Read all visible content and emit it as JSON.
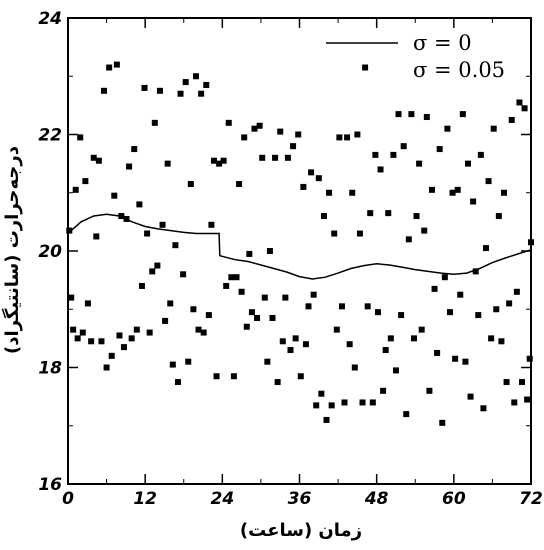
{
  "chart_data": {
    "type": "scatter",
    "xlabel": "زمان (ساعت)",
    "ylabel": "درجه‌حرارت (سانتیگراد)",
    "xlim": [
      0,
      72
    ],
    "ylim": [
      16,
      24
    ],
    "xticks": [
      "0",
      "12",
      "24",
      "36",
      "48",
      "60",
      "72"
    ],
    "yticks": [
      "16",
      "18",
      "20",
      "22",
      "24"
    ],
    "legend_position": "top-right",
    "series": [
      {
        "name": "σ = 0",
        "kind": "line",
        "color": "#000000",
        "points": [
          [
            0,
            20.3
          ],
          [
            2,
            20.5
          ],
          [
            4,
            20.6
          ],
          [
            6,
            20.63
          ],
          [
            8,
            20.6
          ],
          [
            10,
            20.5
          ],
          [
            12,
            20.42
          ],
          [
            14,
            20.38
          ],
          [
            16,
            20.35
          ],
          [
            18,
            20.32
          ],
          [
            20,
            20.3
          ],
          [
            22,
            20.3
          ],
          [
            23.5,
            20.3
          ],
          [
            23.6,
            19.92
          ],
          [
            26,
            19.85
          ],
          [
            28,
            19.82
          ],
          [
            30,
            19.76
          ],
          [
            32,
            19.7
          ],
          [
            34,
            19.64
          ],
          [
            36,
            19.56
          ],
          [
            38,
            19.52
          ],
          [
            40,
            19.55
          ],
          [
            42,
            19.62
          ],
          [
            44,
            19.7
          ],
          [
            46,
            19.75
          ],
          [
            48,
            19.78
          ],
          [
            50,
            19.76
          ],
          [
            52,
            19.72
          ],
          [
            54,
            19.68
          ],
          [
            56,
            19.65
          ],
          [
            58,
            19.62
          ],
          [
            60,
            19.6
          ],
          [
            62,
            19.62
          ],
          [
            64,
            19.7
          ],
          [
            66,
            19.8
          ],
          [
            68,
            19.88
          ],
          [
            70,
            19.95
          ],
          [
            72,
            20.02
          ]
        ]
      },
      {
        "name": "σ = 0.05",
        "kind": "markers",
        "color": "#000000",
        "points": [
          [
            0.2,
            20.35
          ],
          [
            0.5,
            19.2
          ],
          [
            0.8,
            18.65
          ],
          [
            1.2,
            21.05
          ],
          [
            1.5,
            18.5
          ],
          [
            1.9,
            21.95
          ],
          [
            2.3,
            18.6
          ],
          [
            2.7,
            21.2
          ],
          [
            3.1,
            19.1
          ],
          [
            3.6,
            18.45
          ],
          [
            4.0,
            21.6
          ],
          [
            4.4,
            20.25
          ],
          [
            4.8,
            21.55
          ],
          [
            5.2,
            18.45
          ],
          [
            5.6,
            22.75
          ],
          [
            6.0,
            18.0
          ],
          [
            6.4,
            23.15
          ],
          [
            6.8,
            18.2
          ],
          [
            7.2,
            20.95
          ],
          [
            7.6,
            23.2
          ],
          [
            8.0,
            18.55
          ],
          [
            8.3,
            20.6
          ],
          [
            8.7,
            18.35
          ],
          [
            9.1,
            20.55
          ],
          [
            9.5,
            21.45
          ],
          [
            9.9,
            18.5
          ],
          [
            10.3,
            21.75
          ],
          [
            10.7,
            18.65
          ],
          [
            11.1,
            20.8
          ],
          [
            11.5,
            19.4
          ],
          [
            11.9,
            22.8
          ],
          [
            12.3,
            20.3
          ],
          [
            12.7,
            18.6
          ],
          [
            13.1,
            19.65
          ],
          [
            13.5,
            22.2
          ],
          [
            13.9,
            19.75
          ],
          [
            14.3,
            22.75
          ],
          [
            14.7,
            20.45
          ],
          [
            15.1,
            18.8
          ],
          [
            15.5,
            21.5
          ],
          [
            15.9,
            19.1
          ],
          [
            16.3,
            18.05
          ],
          [
            16.7,
            20.1
          ],
          [
            17.1,
            17.75
          ],
          [
            17.5,
            22.7
          ],
          [
            17.9,
            19.6
          ],
          [
            18.3,
            22.9
          ],
          [
            18.7,
            18.1
          ],
          [
            19.1,
            21.15
          ],
          [
            19.5,
            19.0
          ],
          [
            19.9,
            23.0
          ],
          [
            20.3,
            18.65
          ],
          [
            20.7,
            22.7
          ],
          [
            21.1,
            18.6
          ],
          [
            21.5,
            22.85
          ],
          [
            21.9,
            18.9
          ],
          [
            22.3,
            20.45
          ],
          [
            22.7,
            21.55
          ],
          [
            23.1,
            17.85
          ],
          [
            23.5,
            21.5
          ],
          [
            24.2,
            21.55
          ],
          [
            24.6,
            19.4
          ],
          [
            25.0,
            22.2
          ],
          [
            25.4,
            19.55
          ],
          [
            25.8,
            17.85
          ],
          [
            26.2,
            19.55
          ],
          [
            26.6,
            21.15
          ],
          [
            27.0,
            19.3
          ],
          [
            27.4,
            21.95
          ],
          [
            27.8,
            18.7
          ],
          [
            28.2,
            19.95
          ],
          [
            28.6,
            18.95
          ],
          [
            29.0,
            22.1
          ],
          [
            29.4,
            18.85
          ],
          [
            29.8,
            22.15
          ],
          [
            30.2,
            21.6
          ],
          [
            30.6,
            19.2
          ],
          [
            31.0,
            18.1
          ],
          [
            31.4,
            20.0
          ],
          [
            31.8,
            18.85
          ],
          [
            32.2,
            21.6
          ],
          [
            32.6,
            17.75
          ],
          [
            33.0,
            22.05
          ],
          [
            33.4,
            18.45
          ],
          [
            33.8,
            19.2
          ],
          [
            34.2,
            21.6
          ],
          [
            34.6,
            18.3
          ],
          [
            35.0,
            21.8
          ],
          [
            35.4,
            18.5
          ],
          [
            35.8,
            22.0
          ],
          [
            36.2,
            17.85
          ],
          [
            36.6,
            21.1
          ],
          [
            37.0,
            18.4
          ],
          [
            37.4,
            19.05
          ],
          [
            37.8,
            21.35
          ],
          [
            38.2,
            19.25
          ],
          [
            38.6,
            17.35
          ],
          [
            39.0,
            21.25
          ],
          [
            39.4,
            17.55
          ],
          [
            39.8,
            20.6
          ],
          [
            40.2,
            17.1
          ],
          [
            40.6,
            21.0
          ],
          [
            41.0,
            17.35
          ],
          [
            41.4,
            20.3
          ],
          [
            41.8,
            18.65
          ],
          [
            42.2,
            21.95
          ],
          [
            42.6,
            19.05
          ],
          [
            43.0,
            17.4
          ],
          [
            43.4,
            21.95
          ],
          [
            43.8,
            18.4
          ],
          [
            44.2,
            21.0
          ],
          [
            44.6,
            18.0
          ],
          [
            45.0,
            22.0
          ],
          [
            45.4,
            20.3
          ],
          [
            45.8,
            17.4
          ],
          [
            46.2,
            23.15
          ],
          [
            46.6,
            19.05
          ],
          [
            47.0,
            20.65
          ],
          [
            47.4,
            17.4
          ],
          [
            47.8,
            21.65
          ],
          [
            48.2,
            18.95
          ],
          [
            48.6,
            21.4
          ],
          [
            49.0,
            17.6
          ],
          [
            49.4,
            18.3
          ],
          [
            49.8,
            20.65
          ],
          [
            50.2,
            18.5
          ],
          [
            50.6,
            21.65
          ],
          [
            51.0,
            17.95
          ],
          [
            51.4,
            22.35
          ],
          [
            51.8,
            18.9
          ],
          [
            52.2,
            21.8
          ],
          [
            52.6,
            17.2
          ],
          [
            53.0,
            20.2
          ],
          [
            53.4,
            22.35
          ],
          [
            53.8,
            18.5
          ],
          [
            54.2,
            20.6
          ],
          [
            54.6,
            21.5
          ],
          [
            55.0,
            18.65
          ],
          [
            55.4,
            20.35
          ],
          [
            55.8,
            22.3
          ],
          [
            56.2,
            17.6
          ],
          [
            56.6,
            21.05
          ],
          [
            57.0,
            19.35
          ],
          [
            57.4,
            18.25
          ],
          [
            57.8,
            21.75
          ],
          [
            58.2,
            17.05
          ],
          [
            58.6,
            19.55
          ],
          [
            59.0,
            22.1
          ],
          [
            59.4,
            18.95
          ],
          [
            59.8,
            21.0
          ],
          [
            60.2,
            18.15
          ],
          [
            60.6,
            21.05
          ],
          [
            61.0,
            19.25
          ],
          [
            61.4,
            22.35
          ],
          [
            61.8,
            18.1
          ],
          [
            62.2,
            21.5
          ],
          [
            62.6,
            17.5
          ],
          [
            63.0,
            20.85
          ],
          [
            63.4,
            19.65
          ],
          [
            63.8,
            18.9
          ],
          [
            64.2,
            21.65
          ],
          [
            64.6,
            17.3
          ],
          [
            65.0,
            20.05
          ],
          [
            65.4,
            21.2
          ],
          [
            65.8,
            18.5
          ],
          [
            66.2,
            22.1
          ],
          [
            66.6,
            19.0
          ],
          [
            67.0,
            20.6
          ],
          [
            67.4,
            18.45
          ],
          [
            67.8,
            21.0
          ],
          [
            68.2,
            17.75
          ],
          [
            68.6,
            19.1
          ],
          [
            69.0,
            22.25
          ],
          [
            69.4,
            17.4
          ],
          [
            69.8,
            19.3
          ],
          [
            70.2,
            22.55
          ],
          [
            70.6,
            17.75
          ],
          [
            71.0,
            22.45
          ],
          [
            71.4,
            17.45
          ],
          [
            71.8,
            18.15
          ],
          [
            72.0,
            20.15
          ]
        ]
      }
    ]
  }
}
